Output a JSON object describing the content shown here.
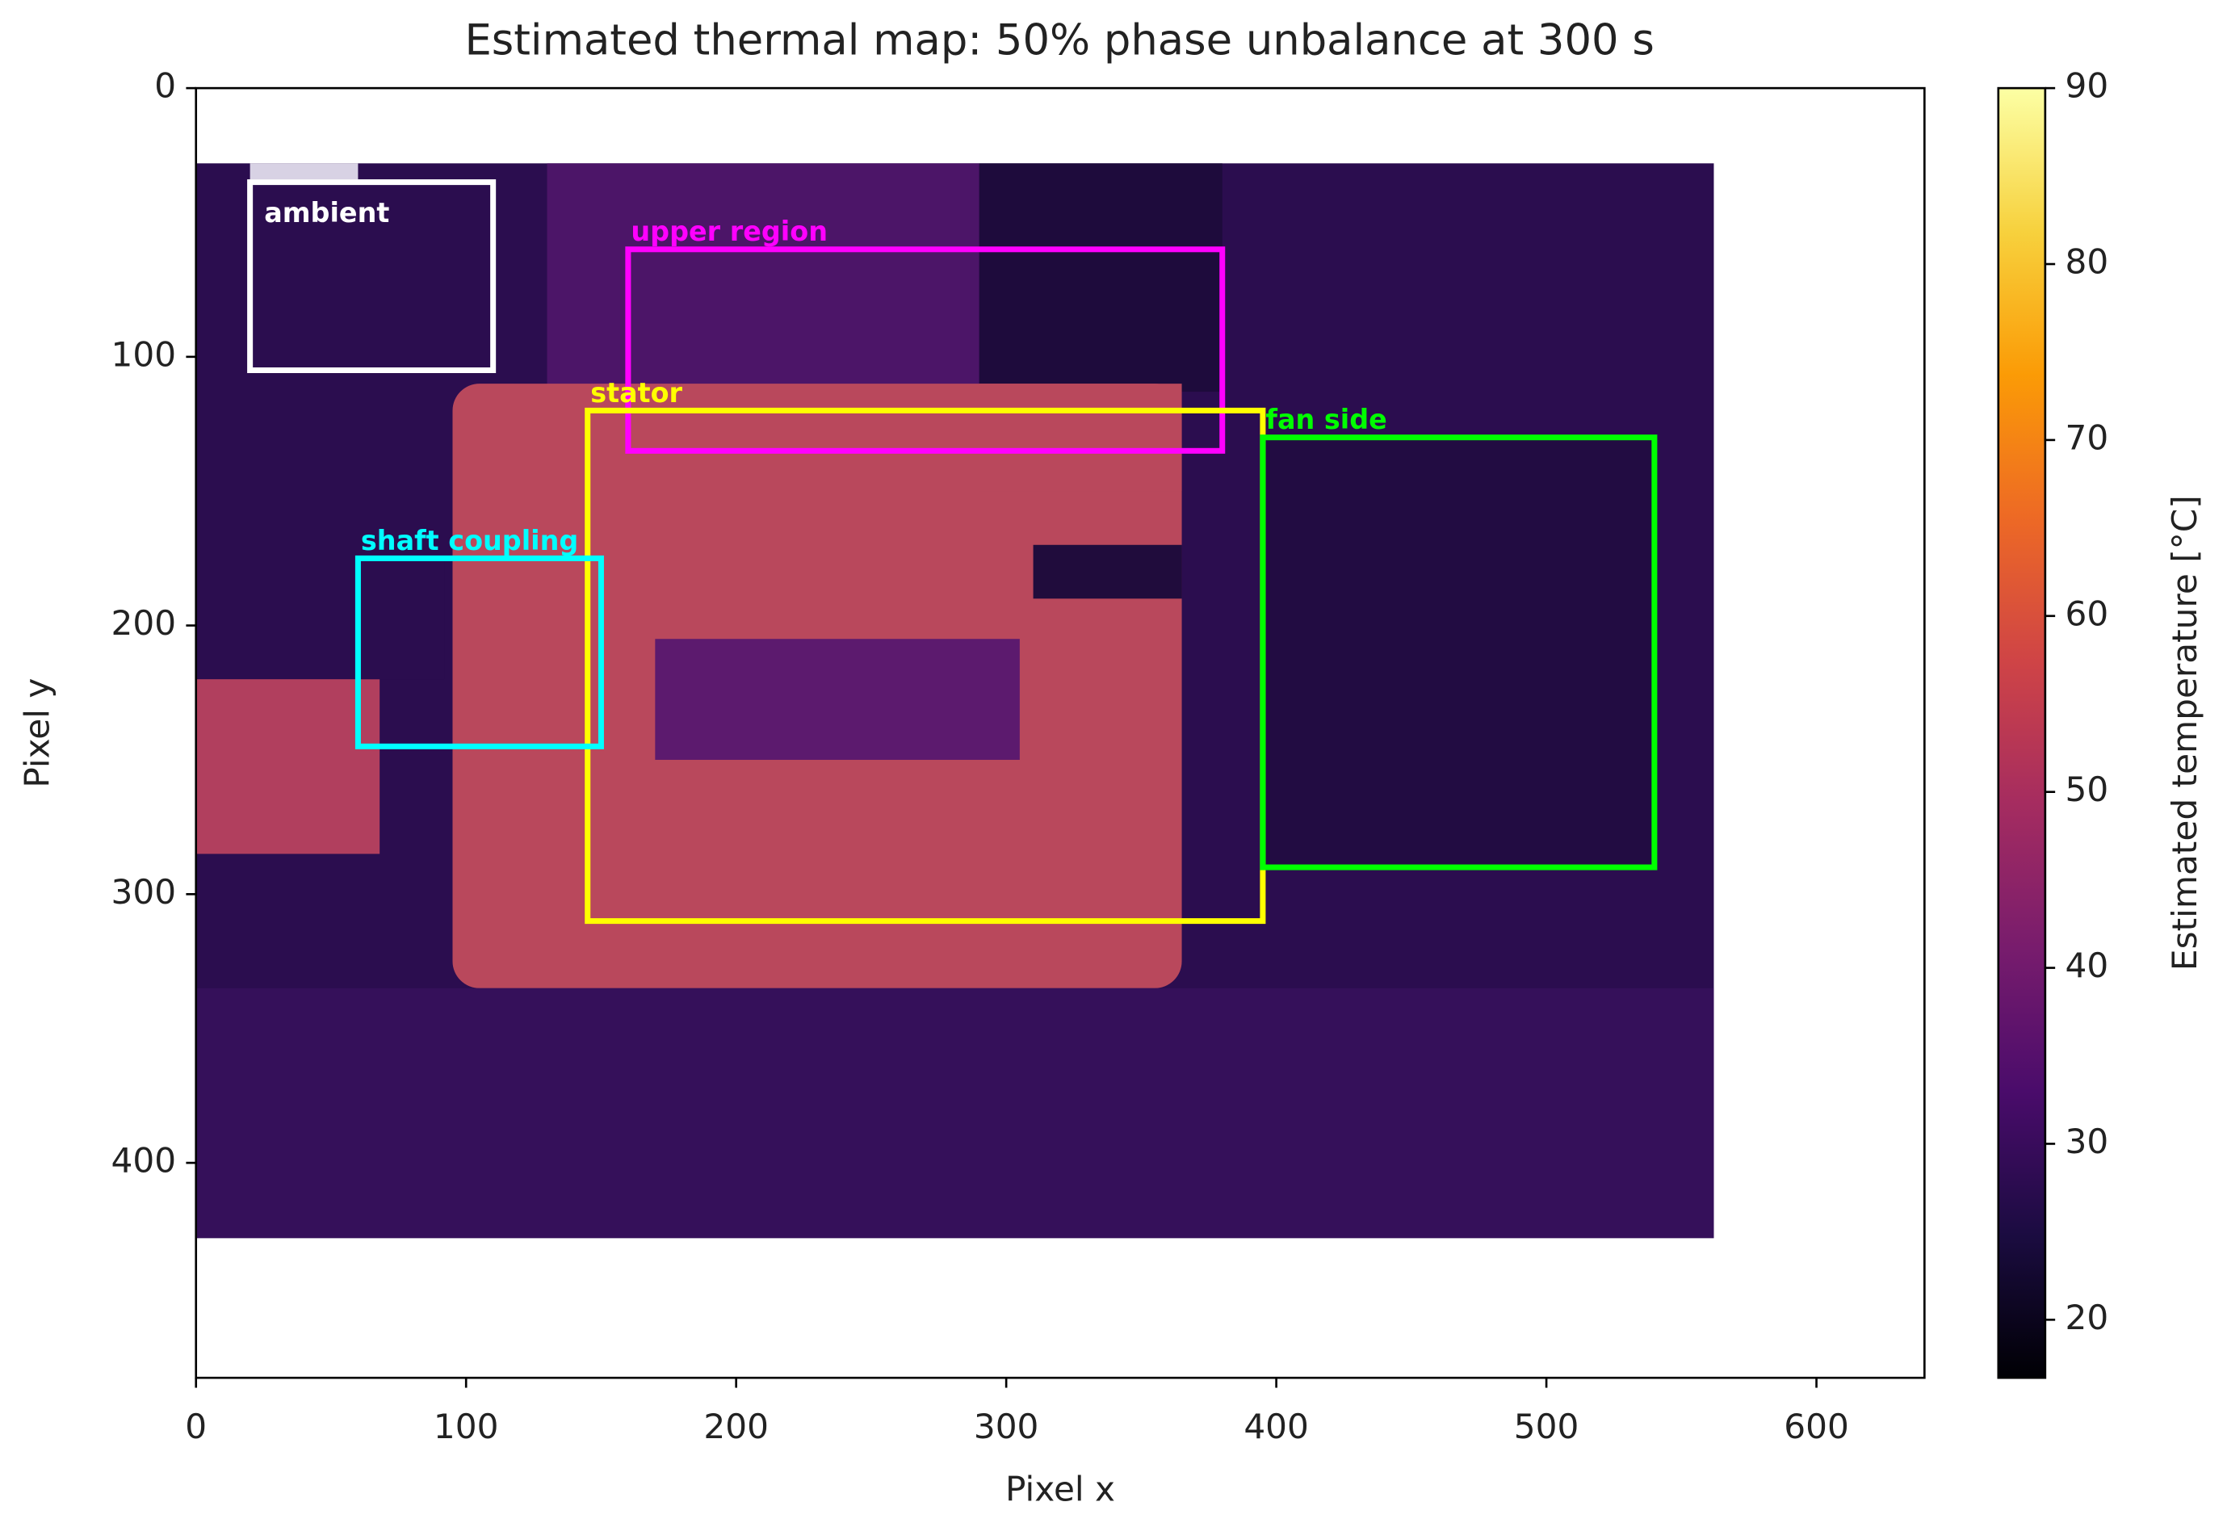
{
  "chart_data": {
    "type": "image",
    "title": "Estimated thermal map: 50% phase unbalance at 300 s",
    "xlabel": "Pixel x",
    "ylabel": "Pixel y",
    "xlim": [
      0,
      640
    ],
    "ylim": [
      480,
      0
    ],
    "xticks": [
      0,
      100,
      200,
      300,
      400,
      500,
      600
    ],
    "yticks": [
      0,
      100,
      200,
      300,
      400
    ],
    "image_extent": {
      "x": [
        0,
        562
      ],
      "y": [
        28,
        428
      ]
    },
    "colormap": "inferno",
    "colorbar": {
      "label": "Estimated temperature [°C]",
      "lim": [
        16.7,
        90
      ],
      "ticks": [
        20,
        30,
        40,
        50,
        60,
        70,
        80,
        90
      ]
    },
    "regions": [
      {
        "label": "ambient",
        "color": "#ffffff",
        "x": [
          20,
          110
        ],
        "y": [
          35,
          105
        ]
      },
      {
        "label": "upper region",
        "color": "#ff00ff",
        "x": [
          160,
          380
        ],
        "y": [
          60,
          135
        ]
      },
      {
        "label": "stator",
        "color": "#ffff00",
        "x": [
          145,
          395
        ],
        "y": [
          120,
          310
        ]
      },
      {
        "label": "shaft coupling",
        "color": "#00ffff",
        "x": [
          60,
          150
        ],
        "y": [
          175,
          245
        ]
      },
      {
        "label": "fan side",
        "color": "#00ff00",
        "x": [
          395,
          540
        ],
        "y": [
          130,
          290
        ]
      }
    ]
  }
}
